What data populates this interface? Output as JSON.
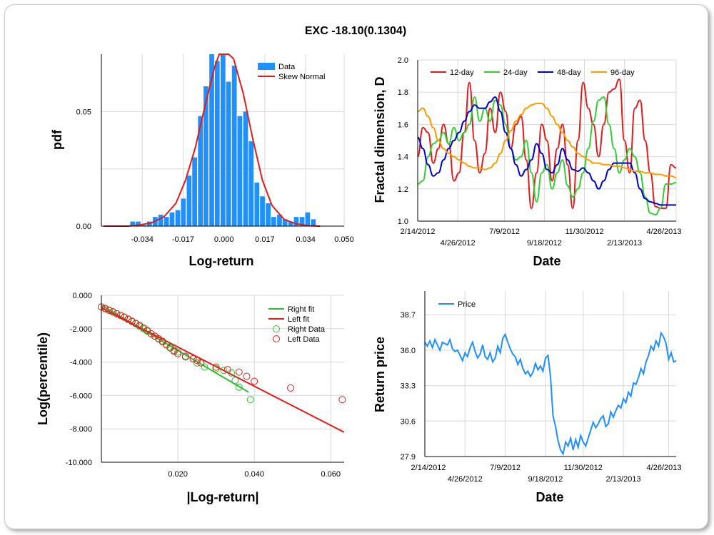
{
  "title": "EXC -18.10(0.1304)",
  "colors": {
    "hist": "#1e90ff",
    "skew": "#e31a1c",
    "d12": "#e31a1c",
    "d24": "#33cc33",
    "d48": "#0000cc",
    "d96": "#ff9900",
    "rightfit": "#33bb33",
    "leftfit": "#e31a1c",
    "price": "#1e90ff"
  },
  "chart_data": [
    {
      "type": "bar",
      "xlabel": "Log-return",
      "ylabel": "pdf",
      "xlim": [
        -0.051,
        0.05
      ],
      "ylim": [
        0,
        0.075
      ],
      "xticks": [
        "-0.034",
        "-0.017",
        "0.000",
        "0.017",
        "0.034",
        "0.050"
      ],
      "yticks": [
        "0.00",
        "0.05"
      ],
      "legend": [
        "Data",
        "Skew Normal"
      ],
      "bin_width": 0.00235,
      "bins_x": [
        -0.038,
        -0.0357,
        -0.0333,
        -0.031,
        -0.0286,
        -0.0263,
        -0.0239,
        -0.0216,
        -0.0192,
        -0.0169,
        -0.0145,
        -0.0122,
        -0.0098,
        -0.0075,
        -0.0051,
        -0.0028,
        -0.0004,
        0.0019,
        0.0043,
        0.0066,
        0.009,
        0.0113,
        0.0137,
        0.016,
        0.0184,
        0.0207,
        0.0231,
        0.0254,
        0.0278,
        0.0301,
        0.0325,
        0.0348,
        0.0372
      ],
      "bins_y": [
        0.002,
        0.002,
        0.0005,
        0.002,
        0.004,
        0.005,
        0.004,
        0.006,
        0.007,
        0.012,
        0.022,
        0.03,
        0.048,
        0.061,
        0.077,
        0.072,
        0.076,
        0.063,
        0.07,
        0.048,
        0.05,
        0.037,
        0.019,
        0.013,
        0.01,
        0.004,
        0.005,
        0.003,
        0.002,
        0.004,
        0.004,
        0.006,
        0.003
      ],
      "curve_x": [
        -0.05,
        -0.045,
        -0.04,
        -0.035,
        -0.03,
        -0.025,
        -0.02,
        -0.016,
        -0.012,
        -0.008,
        -0.004,
        -0.002,
        0.0,
        0.002,
        0.004,
        0.008,
        0.012,
        0.016,
        0.02,
        0.025,
        0.03,
        0.035,
        0.04
      ],
      "curve_y": [
        0.0,
        0.0,
        0.0,
        0.0005,
        0.0015,
        0.004,
        0.01,
        0.02,
        0.034,
        0.052,
        0.069,
        0.075,
        0.078,
        0.077,
        0.073,
        0.058,
        0.038,
        0.02,
        0.009,
        0.003,
        0.001,
        0.0002,
        0.0
      ]
    },
    {
      "type": "line",
      "xlabel": "Date",
      "ylabel": "Fractal dimension, D",
      "ylim": [
        1.0,
        2.0
      ],
      "yticks": [
        "1.0",
        "1.2",
        "1.4",
        "1.6",
        "1.8",
        "2.0"
      ],
      "xticks_top": [
        "2/14/2012",
        "7/9/2012",
        "11/30/2012",
        "4/26/2013"
      ],
      "xticks_bottom": [
        "4/26/2012",
        "9/18/2012",
        "2/13/2013"
      ],
      "x": [
        0,
        2,
        4,
        6,
        8,
        10,
        12,
        14,
        16,
        18,
        20,
        22,
        24,
        26,
        28,
        30,
        32,
        34,
        36,
        38,
        40,
        42,
        44,
        46,
        48,
        50,
        52,
        54,
        56,
        58,
        60,
        62,
        64,
        66,
        68,
        70,
        72,
        74,
        76,
        78,
        80,
        82,
        84,
        86,
        88,
        90,
        92,
        94,
        96,
        98,
        100
      ],
      "series": [
        {
          "name": "12-day",
          "values": [
            1.4,
            1.58,
            1.55,
            1.36,
            1.45,
            1.6,
            1.48,
            1.25,
            1.3,
            1.55,
            1.86,
            1.5,
            1.3,
            1.42,
            1.7,
            1.55,
            1.8,
            1.68,
            1.45,
            1.6,
            1.65,
            1.38,
            1.08,
            1.3,
            1.6,
            1.5,
            1.25,
            1.45,
            1.6,
            1.35,
            1.08,
            1.5,
            1.86,
            1.7,
            1.6,
            1.4,
            1.6,
            1.8,
            1.82,
            1.88,
            1.5,
            1.3,
            1.7,
            1.75,
            1.5,
            1.3,
            1.09,
            1.08,
            1.08,
            1.35,
            1.33
          ]
        },
        {
          "name": "24-day",
          "values": [
            1.23,
            1.25,
            1.4,
            1.48,
            1.5,
            1.55,
            1.48,
            1.58,
            1.5,
            1.55,
            1.6,
            1.77,
            1.62,
            1.7,
            1.62,
            1.75,
            1.72,
            1.6,
            1.45,
            1.38,
            1.4,
            1.5,
            1.3,
            1.12,
            1.3,
            1.35,
            1.2,
            1.3,
            1.38,
            1.22,
            1.15,
            1.2,
            1.3,
            1.45,
            1.62,
            1.75,
            1.77,
            1.6,
            1.45,
            1.3,
            1.38,
            1.45,
            1.4,
            1.3,
            1.15,
            1.05,
            1.04,
            1.08,
            1.23,
            1.23,
            1.24
          ]
        },
        {
          "name": "48-day",
          "values": [
            1.52,
            1.45,
            1.35,
            1.28,
            1.3,
            1.38,
            1.45,
            1.5,
            1.55,
            1.62,
            1.68,
            1.72,
            1.7,
            1.7,
            1.74,
            1.77,
            1.68,
            1.55,
            1.45,
            1.35,
            1.28,
            1.32,
            1.38,
            1.48,
            1.42,
            1.32,
            1.3,
            1.35,
            1.45,
            1.38,
            1.32,
            1.31,
            1.33,
            1.3,
            1.25,
            1.2,
            1.25,
            1.32,
            1.36,
            1.36,
            1.36,
            1.36,
            1.3,
            1.2,
            1.14,
            1.12,
            1.11,
            1.1,
            1.1,
            1.1,
            1.1
          ]
        },
        {
          "name": "96-day",
          "values": [
            1.68,
            1.7,
            1.65,
            1.58,
            1.5,
            1.45,
            1.42,
            1.4,
            1.38,
            1.36,
            1.34,
            1.33,
            1.33,
            1.32,
            1.33,
            1.36,
            1.42,
            1.5,
            1.56,
            1.62,
            1.66,
            1.7,
            1.72,
            1.73,
            1.73,
            1.7,
            1.65,
            1.6,
            1.55,
            1.5,
            1.46,
            1.42,
            1.4,
            1.38,
            1.36,
            1.36,
            1.35,
            1.35,
            1.34,
            1.34,
            1.33,
            1.32,
            1.31,
            1.31,
            1.3,
            1.3,
            1.29,
            1.29,
            1.28,
            1.28,
            1.27
          ]
        }
      ]
    },
    {
      "type": "scatter",
      "xlabel": "|Log-return|",
      "ylabel": "Log(percentile)",
      "xlim": [
        0,
        0.0635
      ],
      "ylim": [
        -10,
        0
      ],
      "xticks": [
        "0.020",
        "0.040",
        "0.060"
      ],
      "yticks": [
        "0.000",
        "-2.000",
        "-4.000",
        "-6.000",
        "-8.000",
        "-10.000"
      ],
      "right_fit": {
        "name": "Right fit",
        "x": [
          0.0,
          0.0385
        ],
        "y": [
          -0.6,
          -5.8
        ]
      },
      "left_fit": {
        "name": "Left fit",
        "x": [
          0.0,
          0.0635
        ],
        "y": [
          -0.75,
          -8.2
        ]
      },
      "right_data": {
        "name": "Right Data",
        "x": [
          0.0,
          0.001,
          0.002,
          0.003,
          0.004,
          0.005,
          0.006,
          0.007,
          0.008,
          0.009,
          0.01,
          0.011,
          0.012,
          0.013,
          0.014,
          0.015,
          0.016,
          0.017,
          0.018,
          0.019,
          0.02,
          0.022,
          0.025,
          0.027,
          0.03,
          0.032,
          0.034,
          0.035,
          0.036,
          0.039
        ],
        "y": [
          -0.7,
          -0.78,
          -0.88,
          -0.98,
          -1.1,
          -1.2,
          -1.32,
          -1.45,
          -1.58,
          -1.7,
          -1.85,
          -2.0,
          -2.15,
          -2.3,
          -2.45,
          -2.62,
          -2.8,
          -2.98,
          -3.1,
          -3.3,
          -3.4,
          -3.7,
          -4.05,
          -4.3,
          -4.4,
          -4.5,
          -4.65,
          -5.1,
          -5.5,
          -6.25
        ]
      },
      "left_data": {
        "name": "Left Data",
        "x": [
          0.0,
          0.001,
          0.002,
          0.003,
          0.004,
          0.005,
          0.006,
          0.007,
          0.008,
          0.009,
          0.01,
          0.011,
          0.012,
          0.013,
          0.014,
          0.015,
          0.016,
          0.017,
          0.018,
          0.019,
          0.02,
          0.022,
          0.024,
          0.025,
          0.026,
          0.03,
          0.033,
          0.036,
          0.038,
          0.04,
          0.0495,
          0.063
        ],
        "y": [
          -0.7,
          -0.8,
          -0.9,
          -1.0,
          -1.1,
          -1.2,
          -1.3,
          -1.42,
          -1.55,
          -1.68,
          -1.8,
          -1.95,
          -2.1,
          -2.3,
          -2.45,
          -2.6,
          -2.75,
          -2.95,
          -3.15,
          -3.35,
          -3.5,
          -3.65,
          -3.8,
          -3.9,
          -4.05,
          -4.3,
          -4.45,
          -4.6,
          -4.85,
          -5.15,
          -5.55,
          -6.25
        ]
      }
    },
    {
      "type": "line",
      "xlabel": "Date",
      "ylabel": "Return price",
      "ylim": [
        27.9,
        40.5
      ],
      "yticks": [
        "27.9",
        "30.6",
        "33.3",
        "36.0",
        "38.7"
      ],
      "xticks_top": [
        "2/14/2012",
        "7/9/2012",
        "11/30/2012",
        "4/26/2013"
      ],
      "xticks_bottom": [
        "4/26/2012",
        "9/18/2012",
        "2/13/2013"
      ],
      "series": [
        {
          "name": "Price",
          "x": [
            0,
            1,
            2,
            3,
            4,
            5,
            6,
            7,
            8,
            9,
            10,
            11,
            12,
            13,
            14,
            15,
            16,
            17,
            18,
            19,
            20,
            21,
            22,
            23,
            24,
            25,
            26,
            27,
            28,
            29,
            30,
            31,
            32,
            33,
            34,
            35,
            36,
            37,
            38,
            39,
            40,
            41,
            42,
            43,
            44,
            45,
            46,
            47,
            48,
            49,
            50,
            51,
            52,
            53,
            54,
            55,
            56,
            57,
            58,
            59,
            60,
            61,
            62,
            63,
            64,
            65,
            66,
            67,
            68,
            69,
            70,
            71,
            72,
            73,
            74,
            75,
            76,
            77,
            78,
            79,
            80,
            81,
            82,
            83,
            84,
            85,
            86,
            87,
            88,
            89,
            90,
            91,
            92,
            93,
            94,
            95,
            96,
            97,
            98,
            99,
            100
          ],
          "values": [
            36.6,
            36.3,
            36.7,
            36.2,
            36.8,
            36.4,
            36.0,
            36.6,
            36.5,
            36.4,
            36.8,
            36.1,
            35.9,
            36.0,
            35.6,
            35.2,
            35.8,
            35.5,
            36.2,
            36.6,
            35.9,
            35.4,
            35.7,
            36.4,
            35.5,
            35.3,
            35.8,
            35.1,
            35.4,
            36.3,
            35.8,
            36.9,
            37.2,
            36.6,
            36.1,
            35.7,
            35.5,
            34.9,
            35.3,
            34.6,
            34.2,
            34.4,
            34.0,
            34.3,
            35.0,
            34.5,
            34.8,
            34.4,
            35.4,
            35.6,
            34.0,
            31.0,
            30.2,
            29.1,
            28.4,
            28.1,
            29.0,
            28.7,
            29.3,
            28.4,
            29.2,
            28.6,
            29.5,
            29.0,
            28.7,
            29.3,
            29.9,
            30.5,
            30.1,
            30.4,
            30.8,
            31.0,
            30.2,
            30.4,
            31.3,
            30.9,
            31.4,
            31.8,
            31.6,
            32.3,
            32.0,
            32.8,
            32.5,
            33.5,
            33.4,
            33.9,
            34.6,
            34.2,
            35.1,
            35.6,
            36.3,
            36.0,
            36.7,
            36.3,
            37.3,
            37.0,
            36.5,
            35.3,
            35.8,
            35.1,
            35.2
          ]
        }
      ]
    }
  ]
}
